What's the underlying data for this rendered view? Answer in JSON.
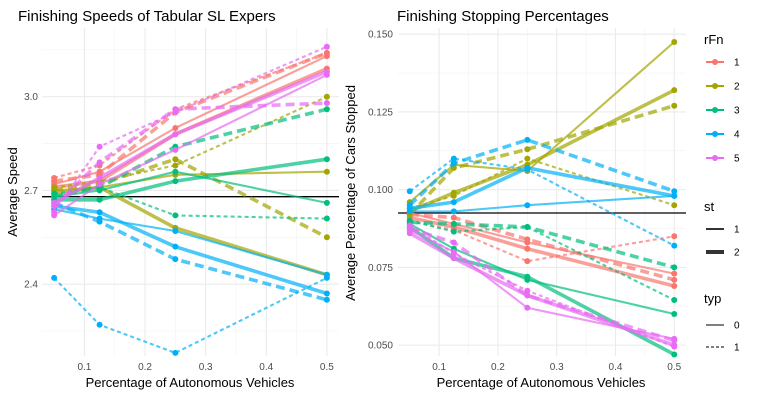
{
  "chart_data": [
    {
      "type": "line",
      "title": "Finishing Speeds of Tabular SL Expers",
      "xlabel": "Percentage of Autonomous Vehicles",
      "ylabel": "Average Speed",
      "xlim": [
        0.03,
        0.52
      ],
      "ylim": [
        2.17,
        3.22
      ],
      "x_ticks": [
        0.1,
        0.2,
        0.3,
        0.4,
        0.5
      ],
      "x_tick_labels": [
        "0.1",
        "0.2",
        "0.3",
        "0.4",
        "0.5"
      ],
      "y_ticks": [
        2.4,
        2.7,
        3.0
      ],
      "y_tick_labels": [
        "2.4",
        "2.7",
        "3.0"
      ],
      "grid": true,
      "hline": 2.68,
      "x": [
        0.05,
        0.125,
        0.25,
        0.5
      ],
      "series": [
        {
          "rFn": "1",
          "st": "1",
          "typ": "0",
          "values": [
            2.72,
            2.76,
            2.9,
            3.13
          ]
        },
        {
          "rFn": "1",
          "st": "1",
          "typ": "1",
          "values": [
            2.74,
            2.78,
            2.96,
            3.14
          ]
        },
        {
          "rFn": "1",
          "st": "2",
          "typ": "0",
          "values": [
            2.71,
            2.73,
            2.88,
            3.09
          ]
        },
        {
          "rFn": "1",
          "st": "2",
          "typ": "1",
          "values": [
            2.73,
            2.75,
            2.95,
            3.14
          ]
        },
        {
          "rFn": "2",
          "st": "1",
          "typ": "0",
          "values": [
            2.7,
            2.71,
            2.75,
            2.76
          ]
        },
        {
          "rFn": "2",
          "st": "1",
          "typ": "1",
          "values": [
            2.71,
            2.73,
            2.78,
            3.0
          ]
        },
        {
          "rFn": "2",
          "st": "2",
          "typ": "0",
          "values": [
            2.69,
            2.71,
            2.58,
            2.43
          ]
        },
        {
          "rFn": "2",
          "st": "2",
          "typ": "1",
          "values": [
            2.7,
            2.72,
            2.8,
            2.55
          ]
        },
        {
          "rFn": "3",
          "st": "1",
          "typ": "0",
          "values": [
            2.68,
            2.7,
            2.76,
            2.66
          ]
        },
        {
          "rFn": "3",
          "st": "1",
          "typ": "1",
          "values": [
            2.69,
            2.71,
            2.62,
            2.61
          ]
        },
        {
          "rFn": "3",
          "st": "2",
          "typ": "0",
          "values": [
            2.67,
            2.67,
            2.73,
            2.8
          ]
        },
        {
          "rFn": "3",
          "st": "2",
          "typ": "1",
          "values": [
            2.68,
            2.71,
            2.84,
            2.96
          ]
        },
        {
          "rFn": "4",
          "st": "1",
          "typ": "0",
          "values": [
            2.64,
            2.61,
            2.57,
            2.43
          ]
        },
        {
          "rFn": "4",
          "st": "1",
          "typ": "1",
          "values": [
            2.42,
            2.27,
            2.18,
            2.42
          ]
        },
        {
          "rFn": "4",
          "st": "2",
          "typ": "0",
          "values": [
            2.65,
            2.63,
            2.52,
            2.37
          ]
        },
        {
          "rFn": "4",
          "st": "2",
          "typ": "1",
          "values": [
            2.66,
            2.6,
            2.48,
            2.35
          ]
        },
        {
          "rFn": "5",
          "st": "1",
          "typ": "0",
          "values": [
            2.62,
            2.72,
            2.83,
            3.07
          ]
        },
        {
          "rFn": "5",
          "st": "1",
          "typ": "1",
          "values": [
            2.63,
            2.84,
            2.95,
            3.16
          ]
        },
        {
          "rFn": "5",
          "st": "2",
          "typ": "0",
          "values": [
            2.66,
            2.74,
            2.88,
            3.08
          ]
        },
        {
          "rFn": "5",
          "st": "2",
          "typ": "1",
          "values": [
            2.65,
            2.79,
            2.96,
            2.98
          ]
        }
      ]
    },
    {
      "type": "line",
      "title": "Finishing Stopping Percentages",
      "xlabel": "Percentage of Autonomous Vehicles",
      "ylabel": "Average Percentage of Cars Stopped",
      "xlim": [
        0.03,
        0.52
      ],
      "ylim": [
        0.0465,
        0.152
      ],
      "x_ticks": [
        0.1,
        0.2,
        0.3,
        0.4,
        0.5
      ],
      "x_tick_labels": [
        "0.1",
        "0.2",
        "0.3",
        "0.4",
        "0.5"
      ],
      "y_ticks": [
        0.05,
        0.075,
        0.1,
        0.125,
        0.15
      ],
      "y_tick_labels": [
        "0.050",
        "0.075",
        "0.100",
        "0.125",
        "0.150"
      ],
      "grid": true,
      "hline": 0.0925,
      "x": [
        0.05,
        0.125,
        0.25,
        0.5
      ],
      "series": [
        {
          "rFn": "1",
          "st": "1",
          "typ": "0",
          "values": [
            0.0925,
            0.089,
            0.083,
            0.073
          ]
        },
        {
          "rFn": "1",
          "st": "1",
          "typ": "1",
          "values": [
            0.09,
            0.087,
            0.077,
            0.085
          ]
        },
        {
          "rFn": "1",
          "st": "2",
          "typ": "0",
          "values": [
            0.091,
            0.088,
            0.081,
            0.069
          ]
        },
        {
          "rFn": "1",
          "st": "2",
          "typ": "1",
          "values": [
            0.092,
            0.091,
            0.084,
            0.071
          ]
        },
        {
          "rFn": "2",
          "st": "1",
          "typ": "0",
          "values": [
            0.096,
            0.108,
            0.106,
            0.1475
          ]
        },
        {
          "rFn": "2",
          "st": "1",
          "typ": "1",
          "values": [
            0.094,
            0.098,
            0.11,
            0.095
          ]
        },
        {
          "rFn": "2",
          "st": "2",
          "typ": "0",
          "values": [
            0.093,
            0.099,
            0.108,
            0.132
          ]
        },
        {
          "rFn": "2",
          "st": "2",
          "typ": "1",
          "values": [
            0.092,
            0.107,
            0.113,
            0.127
          ]
        },
        {
          "rFn": "3",
          "st": "1",
          "typ": "0",
          "values": [
            0.089,
            0.081,
            0.071,
            0.06
          ]
        },
        {
          "rFn": "3",
          "st": "1",
          "typ": "1",
          "values": [
            0.09,
            0.0865,
            0.088,
            0.0645
          ]
        },
        {
          "rFn": "3",
          "st": "2",
          "typ": "0",
          "values": [
            0.088,
            0.078,
            0.072,
            0.047
          ]
        },
        {
          "rFn": "3",
          "st": "2",
          "typ": "1",
          "values": [
            0.0895,
            0.089,
            0.088,
            0.075
          ]
        },
        {
          "rFn": "4",
          "st": "1",
          "typ": "0",
          "values": [
            0.093,
            0.093,
            0.095,
            0.098
          ]
        },
        {
          "rFn": "4",
          "st": "1",
          "typ": "1",
          "values": [
            0.0995,
            0.11,
            0.1065,
            0.082
          ]
        },
        {
          "rFn": "4",
          "st": "2",
          "typ": "0",
          "values": [
            0.094,
            0.096,
            0.107,
            0.098
          ]
        },
        {
          "rFn": "4",
          "st": "2",
          "typ": "1",
          "values": [
            0.095,
            0.1085,
            0.116,
            0.0995
          ]
        },
        {
          "rFn": "5",
          "st": "1",
          "typ": "0",
          "values": [
            0.087,
            0.08,
            0.062,
            0.052
          ]
        },
        {
          "rFn": "5",
          "st": "1",
          "typ": "1",
          "values": [
            0.0885,
            0.0795,
            0.0675,
            0.0495
          ]
        },
        {
          "rFn": "5",
          "st": "2",
          "typ": "0",
          "values": [
            0.086,
            0.078,
            0.066,
            0.05
          ]
        },
        {
          "rFn": "5",
          "st": "2",
          "typ": "1",
          "values": [
            0.0875,
            0.083,
            0.066,
            0.0515
          ]
        }
      ]
    }
  ],
  "legend": {
    "placement": "right",
    "rfn": {
      "title": "rFn",
      "items": [
        {
          "label": "1",
          "color": "#F8766D"
        },
        {
          "label": "2",
          "color": "#A3A500"
        },
        {
          "label": "3",
          "color": "#00BF7D"
        },
        {
          "label": "4",
          "color": "#00B0F6"
        },
        {
          "label": "5",
          "color": "#E76BF3"
        }
      ]
    },
    "st": {
      "title": "st",
      "items": [
        {
          "label": "1"
        },
        {
          "label": "2"
        }
      ]
    },
    "typ": {
      "title": "typ",
      "items": [
        {
          "label": "0"
        },
        {
          "label": "1"
        }
      ]
    }
  }
}
